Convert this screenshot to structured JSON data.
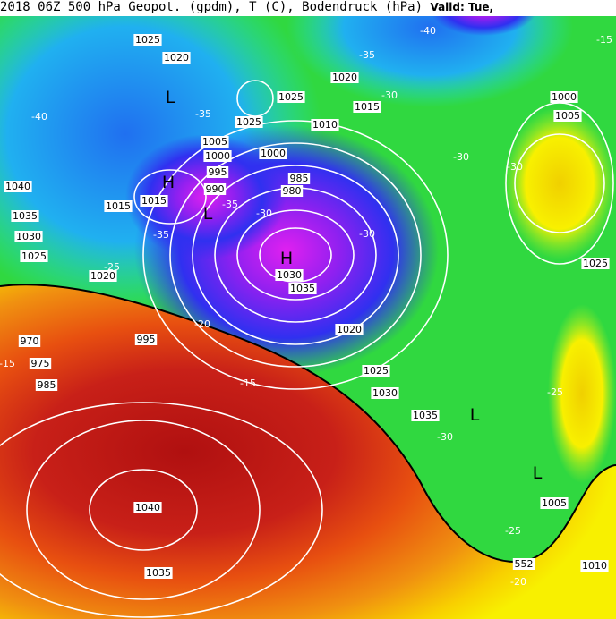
{
  "header": {
    "title": "2018 06Z 500 hPa Geopot. (gpdm), T (C), Bodendruck (hPa)",
    "valid": "Valid: Tue,"
  },
  "pressure_labels": [
    "1025",
    "1020",
    "1025",
    "1020",
    "1015",
    "1025",
    "1010",
    "1005",
    "1000",
    "995",
    "990",
    "1015",
    "1015",
    "985",
    "980",
    "1040",
    "1035",
    "1030",
    "1025",
    "1020",
    "970",
    "975",
    "985",
    "995",
    "1000",
    "1005",
    "1025",
    "1030",
    "1035",
    "1020",
    "1025",
    "1030",
    "1035",
    "1040",
    "1035",
    "1005",
    "1010",
    "1000"
  ],
  "temperature_labels": [
    "-40",
    "-35",
    "-35",
    "-30",
    "-30",
    "-30",
    "-35",
    "-35",
    "-30",
    "-30",
    "-25",
    "-20",
    "-15",
    "-30",
    "-25",
    "-25",
    "-20",
    "-15",
    "-15",
    "-40"
  ],
  "centers": [
    "L",
    "H",
    "L",
    "L",
    "H",
    "L"
  ],
  "contour_label": "552",
  "colors": {
    "purple": "#b018e8",
    "blue": "#2040f0",
    "cyan": "#20d8e0",
    "green": "#30d840",
    "yellow": "#f8f000",
    "orange": "#f09010",
    "red": "#c01818"
  }
}
